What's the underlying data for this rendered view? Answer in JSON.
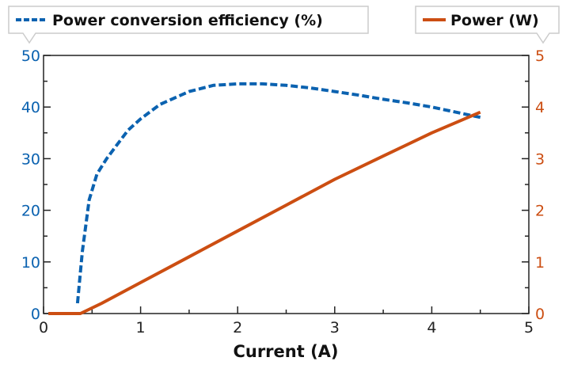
{
  "chart_data": {
    "type": "line",
    "xlabel": "Current (A)",
    "xlim": [
      0,
      5
    ],
    "xticks": [
      "0",
      "1",
      "2",
      "3",
      "4",
      "5"
    ],
    "y_left": {
      "lim": [
        0,
        50
      ],
      "ticks": [
        "0",
        "10",
        "20",
        "30",
        "40",
        "50"
      ],
      "color": "#0b62b0"
    },
    "y_right": {
      "lim": [
        0,
        5
      ],
      "ticks": [
        "0",
        "1",
        "2",
        "3",
        "4",
        "5"
      ],
      "color": "#cc4e12"
    },
    "grid": false,
    "series": [
      {
        "name": "Power conversion efficiency (%)",
        "axis": "left",
        "style": "dashed",
        "color": "#0b62b0",
        "x": [
          0.35,
          0.4,
          0.47,
          0.55,
          0.65,
          0.75,
          0.87,
          1.0,
          1.2,
          1.5,
          1.75,
          2.0,
          2.25,
          2.5,
          2.75,
          3.0,
          3.25,
          3.5,
          3.75,
          4.0,
          4.25,
          4.5
        ],
        "y": [
          2,
          12,
          22,
          27,
          30,
          32.5,
          35.5,
          37.7,
          40.5,
          43,
          44.2,
          44.5,
          44.5,
          44.2,
          43.7,
          43,
          42.3,
          41.5,
          40.8,
          40,
          39,
          38
        ]
      },
      {
        "name": "Power (W)",
        "axis": "right",
        "style": "solid",
        "color": "#cc4e12",
        "x": [
          0.05,
          0.38,
          0.6,
          1.0,
          1.5,
          2.0,
          2.5,
          3.0,
          3.5,
          4.0,
          4.5
        ],
        "y": [
          0,
          0,
          0.2,
          0.6,
          1.1,
          1.6,
          2.1,
          2.6,
          3.05,
          3.5,
          3.9
        ]
      }
    ],
    "legend_placement": "top"
  }
}
